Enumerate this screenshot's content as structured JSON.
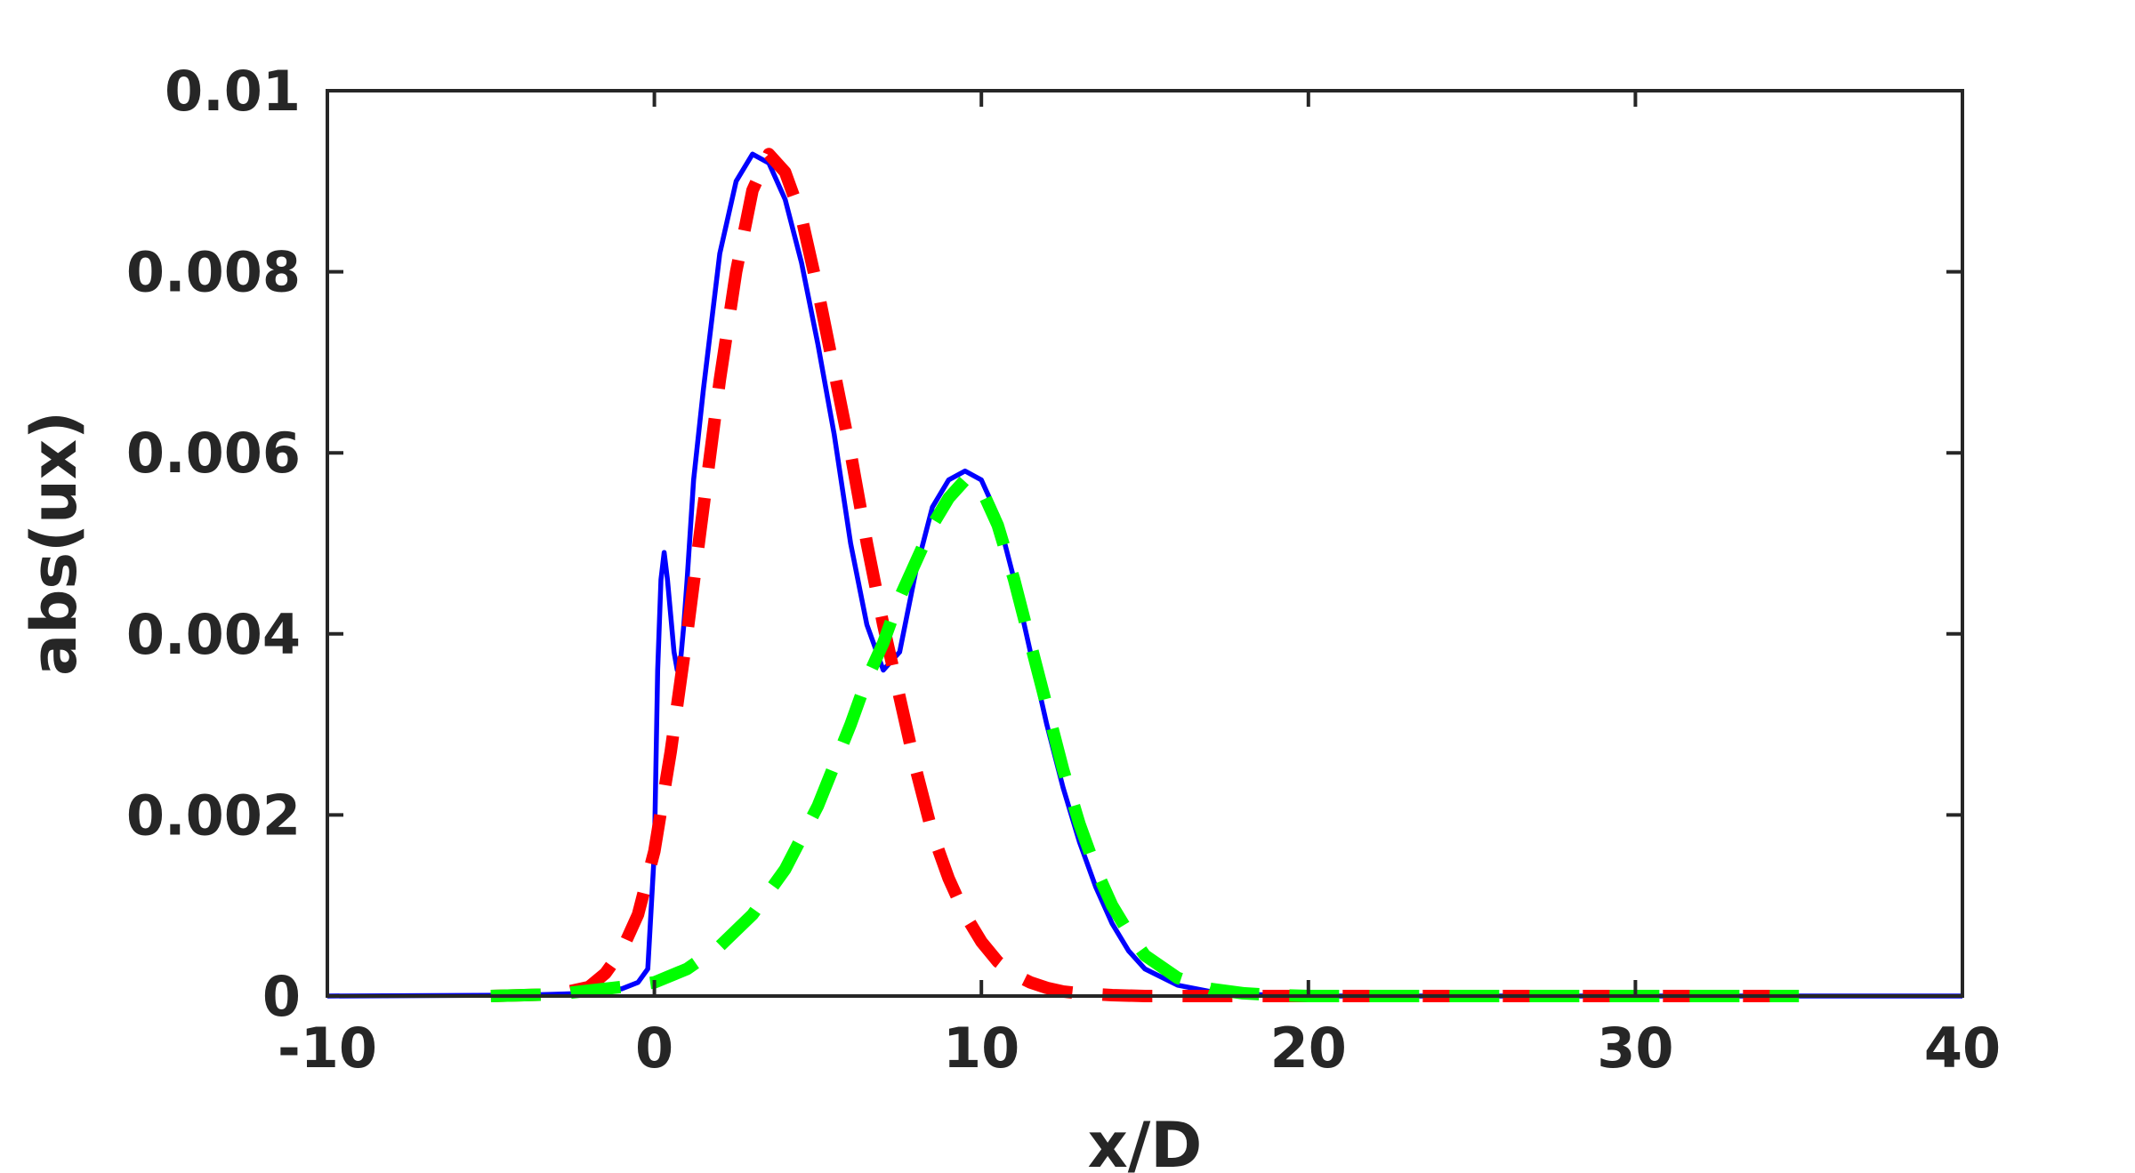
{
  "chart_data": {
    "type": "line",
    "title": "",
    "xlabel": "x/D",
    "ylabel": "abs(ux)",
    "xlim": [
      -10,
      40
    ],
    "ylim": [
      0,
      0.01
    ],
    "xticks": [
      -10,
      0,
      10,
      20,
      30,
      40
    ],
    "yticks": [
      0,
      0.002,
      0.004,
      0.006,
      0.008,
      0.01
    ],
    "xtick_labels": [
      "-10",
      "0",
      "10",
      "20",
      "30",
      "40"
    ],
    "ytick_labels": [
      "0",
      "0.002",
      "0.004",
      "0.006",
      "0.008",
      "0.01"
    ],
    "grid": false,
    "legend": "none",
    "series": [
      {
        "color": "#0000ff",
        "style": "solid",
        "x": [
          -10,
          -4,
          -2,
          -1,
          -0.5,
          -0.2,
          0,
          0.1,
          0.2,
          0.3,
          0.4,
          0.5,
          0.6,
          0.7,
          0.8,
          0.9,
          1.0,
          1.2,
          1.5,
          2.0,
          2.5,
          3.0,
          3.5,
          4.0,
          4.5,
          5.0,
          5.5,
          6.0,
          6.5,
          7.0,
          7.5,
          8.0,
          8.5,
          9.0,
          9.5,
          10.0,
          10.5,
          11.0,
          11.5,
          12.0,
          12.5,
          13.0,
          13.5,
          14.0,
          14.5,
          15.0,
          16.0,
          17.0,
          18.0,
          19.0,
          20.0,
          22.0,
          25.0,
          30.0,
          35.0,
          40.0
        ],
        "y": [
          0,
          1e-05,
          3e-05,
          8e-05,
          0.00015,
          0.0003,
          0.0016,
          0.0036,
          0.0046,
          0.0049,
          0.0046,
          0.0042,
          0.0038,
          0.0036,
          0.0037,
          0.0041,
          0.0046,
          0.0057,
          0.0067,
          0.0082,
          0.009,
          0.0093,
          0.0092,
          0.0088,
          0.0081,
          0.0072,
          0.0062,
          0.005,
          0.0041,
          0.0036,
          0.0038,
          0.0047,
          0.0054,
          0.0057,
          0.0058,
          0.0057,
          0.0053,
          0.0046,
          0.0038,
          0.003,
          0.0023,
          0.0017,
          0.0012,
          0.0008,
          0.0005,
          0.0003,
          0.00012,
          5e-05,
          2e-05,
          1e-05,
          0,
          0,
          0,
          0,
          0,
          0
        ]
      },
      {
        "color": "#ff0000",
        "style": "dashed",
        "x": [
          -5,
          -3,
          -2,
          -1.5,
          -1,
          -0.5,
          0,
          0.5,
          1.0,
          1.5,
          2.0,
          2.5,
          3.0,
          3.5,
          4.0,
          4.5,
          5.0,
          5.5,
          6.0,
          6.5,
          7.0,
          7.5,
          8.0,
          8.5,
          9.0,
          9.5,
          10.0,
          10.5,
          11.0,
          11.5,
          12.0,
          12.5,
          13.0,
          14.0,
          15.0,
          16.0,
          18.0,
          20.0,
          25.0,
          30.0,
          35.0
        ],
        "y": [
          0,
          2e-05,
          0.0001,
          0.00025,
          0.0005,
          0.0009,
          0.0016,
          0.0027,
          0.004,
          0.0054,
          0.0068,
          0.008,
          0.0089,
          0.0093,
          0.0091,
          0.0086,
          0.0078,
          0.0069,
          0.006,
          0.005,
          0.0041,
          0.0033,
          0.0025,
          0.0018,
          0.0013,
          0.0009,
          0.0006,
          0.00038,
          0.00024,
          0.00015,
          9e-05,
          5e-05,
          3e-05,
          1e-05,
          0,
          0,
          0,
          0,
          0,
          0,
          0
        ]
      },
      {
        "color": "#00ff00",
        "style": "dashed",
        "x": [
          -5,
          -3,
          -1,
          0,
          1,
          2,
          3,
          4,
          5,
          6,
          6.5,
          7,
          7.5,
          8,
          8.5,
          9,
          9.5,
          10,
          10.5,
          11,
          11.5,
          12,
          12.5,
          13,
          13.5,
          14,
          14.5,
          15,
          16,
          17,
          18,
          19,
          20,
          25,
          30,
          35
        ],
        "y": [
          0,
          2e-05,
          0.0001,
          0.00015,
          0.0003,
          0.00055,
          0.0009,
          0.0014,
          0.0021,
          0.003,
          0.0035,
          0.0039,
          0.0044,
          0.0048,
          0.0052,
          0.0055,
          0.0057,
          0.0056,
          0.0052,
          0.0046,
          0.0039,
          0.0032,
          0.0025,
          0.0019,
          0.0014,
          0.001,
          0.0007,
          0.00045,
          0.0002,
          8e-05,
          3e-05,
          1e-05,
          0,
          0,
          0,
          0
        ]
      }
    ]
  }
}
